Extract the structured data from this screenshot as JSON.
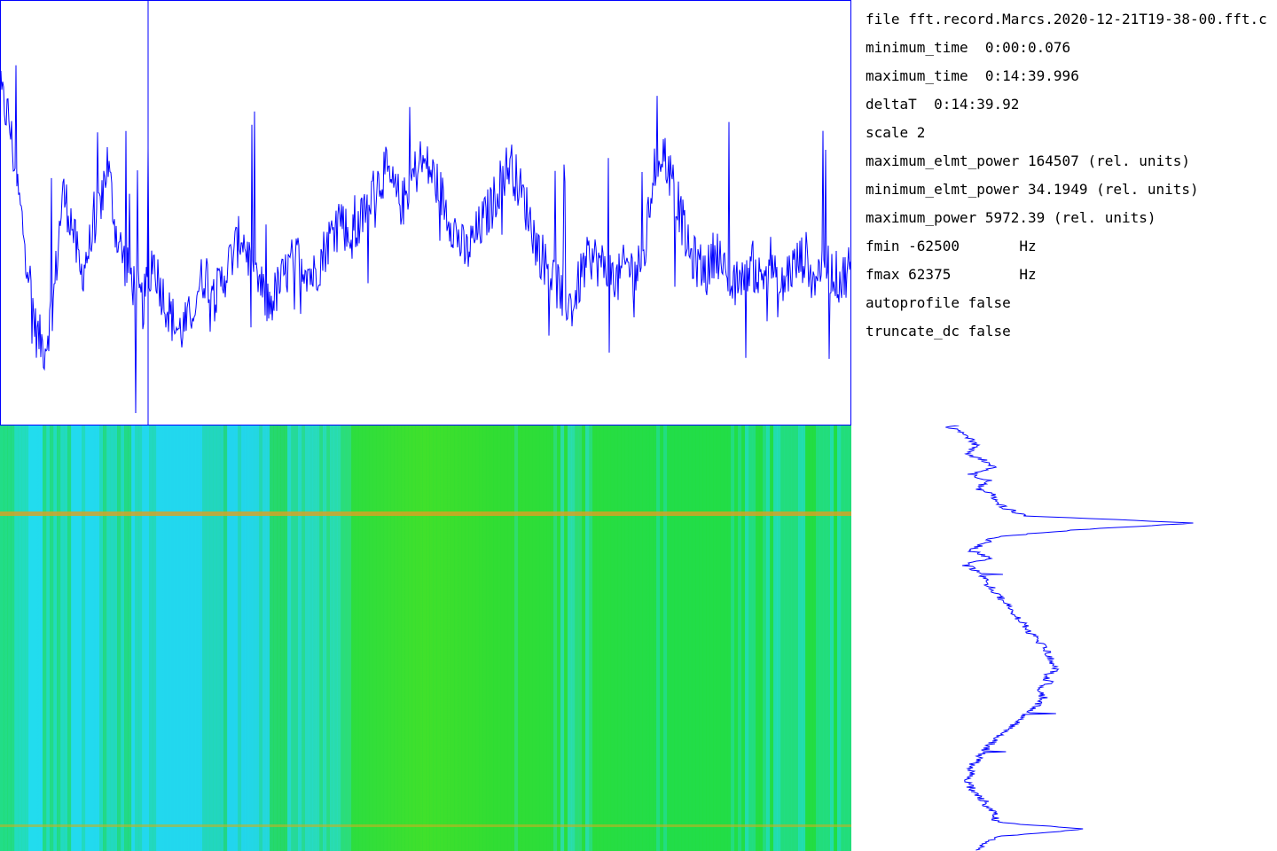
{
  "info": {
    "file": "file fft.record.Marcs.2020-12-21T19-38-00.fft.c",
    "minimum_time": "minimum_time  0:00:0.076",
    "maximum_time": "maximum_time  0:14:39.996",
    "deltaT": "deltaT  0:14:39.92",
    "scale": "scale 2",
    "maximum_elmt_power": "maximum_elmt_power 164507 (rel. units)",
    "minimum_elmt_power": "minimum_elmt_power 34.1949 (rel. units)",
    "maximum_power": "maximum_power 5972.39 (rel. units)",
    "fmin": "fmin -62500       Hz",
    "fmax": "fmax 62375        Hz",
    "autoprofile": "autoprofile false",
    "truncate_dc": "truncate_dc false"
  },
  "colors": {
    "trace": "#0000ff",
    "frame": "#0000ff",
    "spec_green": "#22dd22",
    "spec_cyan": "#22ddee",
    "spec_line": "#e0a020"
  },
  "chart_data": [
    {
      "type": "line",
      "name": "time-power-trace",
      "x_range": [
        0.076,
        879.996
      ],
      "y_range": [
        0,
        1
      ],
      "values": [
        0.78,
        0.72,
        0.55,
        0.4,
        0.22,
        0.18,
        0.3,
        0.55,
        0.48,
        0.35,
        0.42,
        0.5,
        0.62,
        0.45,
        0.38,
        0.33,
        0.28,
        0.4,
        0.32,
        0.26,
        0.22,
        0.24,
        0.32,
        0.36,
        0.3,
        0.35,
        0.4,
        0.45,
        0.38,
        0.33,
        0.28,
        0.32,
        0.36,
        0.4,
        0.38,
        0.35,
        0.4,
        0.45,
        0.5,
        0.44,
        0.46,
        0.52,
        0.56,
        0.6,
        0.55,
        0.52,
        0.58,
        0.62,
        0.6,
        0.56,
        0.5,
        0.45,
        0.4,
        0.44,
        0.48,
        0.52,
        0.58,
        0.62,
        0.56,
        0.5,
        0.42,
        0.38,
        0.34,
        0.3,
        0.28,
        0.36,
        0.4,
        0.38,
        0.36,
        0.34,
        0.38,
        0.36,
        0.4,
        0.6,
        0.65,
        0.58,
        0.5,
        0.4,
        0.38,
        0.36,
        0.42,
        0.35,
        0.32,
        0.36,
        0.38,
        0.34,
        0.4,
        0.3,
        0.36,
        0.38,
        0.4,
        0.35,
        0.38,
        0.36,
        0.34,
        0.38
      ]
    },
    {
      "type": "heatmap",
      "name": "spectrogram",
      "x_range": [
        0.076,
        879.996
      ],
      "y_range": [
        -62500,
        62375
      ],
      "column_levels": [
        0.7,
        0.4,
        0.3,
        0.5,
        0.6,
        0.4,
        0.3,
        0.5,
        0.6,
        0.5,
        0.4,
        0.3,
        0.2,
        0.3,
        0.4,
        0.5,
        0.3,
        0.2,
        0.4,
        0.6,
        0.5,
        0.4,
        0.3,
        0.4,
        0.6,
        0.7,
        0.7,
        0.8,
        0.8,
        0.9,
        0.9,
        0.9,
        0.8,
        0.8,
        0.7,
        0.7,
        0.6,
        0.7,
        0.6,
        0.5,
        0.4,
        0.5,
        0.6,
        0.7,
        0.8,
        0.7,
        0.6,
        0.8,
        0.9,
        0.8,
        0.7,
        0.6,
        0.5,
        0.6,
        0.5,
        0.4,
        0.5,
        0.6,
        0.5,
        0.4
      ]
    },
    {
      "type": "line",
      "name": "frequency-profile",
      "y_range": [
        -62500,
        62375
      ],
      "x_range": [
        0,
        1
      ],
      "values": [
        0.14,
        0.18,
        0.22,
        0.24,
        0.2,
        0.26,
        0.3,
        0.22,
        0.28,
        0.24,
        0.3,
        0.3,
        0.34,
        0.4,
        0.96,
        0.56,
        0.3,
        0.26,
        0.22,
        0.28,
        0.2,
        0.24,
        0.26,
        0.28,
        0.3,
        0.32,
        0.34,
        0.36,
        0.38,
        0.4,
        0.42,
        0.44,
        0.46,
        0.48,
        0.48,
        0.5,
        0.46,
        0.48,
        0.44,
        0.46,
        0.44,
        0.42,
        0.38,
        0.36,
        0.34,
        0.3,
        0.28,
        0.26,
        0.24,
        0.22,
        0.22,
        0.2,
        0.22,
        0.24,
        0.26,
        0.28,
        0.3,
        0.3,
        0.6,
        0.32,
        0.26,
        0.24
      ]
    }
  ]
}
